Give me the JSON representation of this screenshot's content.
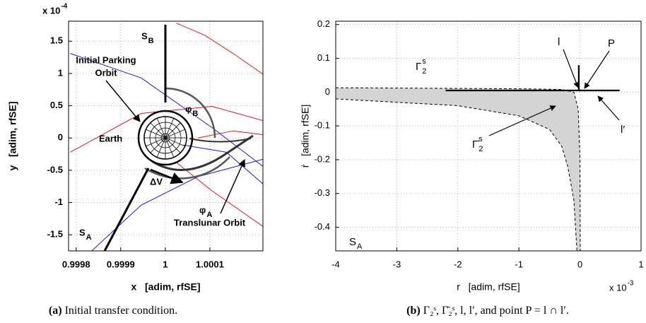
{
  "chart_data": [
    {
      "type": "line",
      "xlabel": "x   [adim, rfSE]",
      "ylabel": "y   [adim, rfSE]",
      "multiplier": {
        "text": "x 10",
        "sup": "-4"
      },
      "xlim": [
        0.999783,
        1.000219
      ],
      "ylim": [
        -1.75,
        1.81
      ],
      "xticks": [
        0.9998,
        0.9999,
        1,
        1.0001
      ],
      "yticks": [
        -1.5,
        -1,
        -0.5,
        0,
        0.5,
        1,
        1.5
      ],
      "grid": true,
      "series": [
        {
          "color": "#e8141c",
          "x": [
            1.000025,
            1.000089,
            1.000152,
            1.000219
          ],
          "y": [
            1.78,
            1.59,
            1.31,
            0.99
          ]
        },
        {
          "color": "#e8141c",
          "x": [
            0.999787,
            0.999946,
            1.000105,
            1.000219
          ],
          "y": [
            -0.22,
            0.38,
            0.49,
            0.27
          ]
        },
        {
          "color": "#e8141c",
          "x": [
            1.000025,
            1.000105,
            1.000219
          ],
          "y": [
            -0.38,
            -0.82,
            -1.37
          ]
        },
        {
          "color": "#e8141c",
          "x": [
            1.000073,
            1.000152,
            1.000219
          ],
          "y": [
            0,
            0.11,
            0.05
          ]
        },
        {
          "color": "#1a1ae0",
          "x": [
            0.999787,
            0.999946,
            1.000105,
            1.000219
          ],
          "y": [
            1.31,
            0.93,
            0.16,
            -0.44
          ]
        },
        {
          "color": "#1a1ae0",
          "x": [
            0.999835,
            0.999946,
            1.000073,
            1.000219
          ],
          "y": [
            -1.75,
            -1.04,
            -0.6,
            -0.33
          ]
        },
        {
          "color": "#1a1ae0",
          "x": [
            1.000041,
            1.000137,
            1.000219
          ],
          "y": [
            -0.11,
            -0.22,
            -0.71
          ]
        }
      ],
      "annotations": [
        {
          "text": "Initial Parking"
        },
        {
          "text": "Orbit"
        },
        {
          "text": "S",
          "sub": "B"
        },
        {
          "text": "φ",
          "sub": "B"
        },
        {
          "text": "Earth"
        },
        {
          "text": "ΔV"
        },
        {
          "text": "φ",
          "sub": "A"
        },
        {
          "text": "S",
          "sub": "A"
        },
        {
          "text": "Translunar Orbit"
        }
      ],
      "caption": {
        "label": "(a)",
        "text": " Initial transfer condition."
      }
    },
    {
      "type": "line",
      "xlabel": "r   [adim, rfSE]",
      "ylabel": "ṙ   [adim, rfSE]",
      "multiplier": {
        "text": "x 10",
        "sup": "-3"
      },
      "xlim": [
        -4,
        1
      ],
      "ylim": [
        -0.47,
        0.21
      ],
      "xticks": [
        -4,
        -3,
        -2,
        -1,
        0,
        1
      ],
      "yticks": [
        -0.4,
        -0.3,
        -0.2,
        -0.1,
        0,
        0.1,
        0.2
      ],
      "grid": true,
      "fill_color": "#d4d4d4",
      "series": [
        {
          "color": "#000000",
          "style": "dashed",
          "x": [
            -4,
            -2,
            -1,
            -0.3,
            -0.1,
            -0.03,
            0,
            0.005
          ],
          "y": [
            0.013,
            0.011,
            0.01,
            0.008,
            0,
            -0.05,
            -0.2,
            -0.47
          ]
        },
        {
          "color": "#000000",
          "style": "dashed",
          "x": [
            -4,
            -3,
            -2,
            -1,
            -0.5,
            -0.3,
            -0.2,
            -0.1,
            -0.05
          ],
          "y": [
            -0.02,
            -0.03,
            -0.04,
            -0.07,
            -0.11,
            -0.16,
            -0.22,
            -0.32,
            -0.47
          ]
        },
        {
          "color": "#000000",
          "x": [
            -2.2,
            0.65
          ],
          "y": [
            0.005,
            0.005
          ]
        },
        {
          "color": "#000000",
          "x": [
            -0.02,
            -0.02
          ],
          "y": [
            0.005,
            0.08
          ]
        }
      ],
      "annotations": [
        {
          "text": "l"
        },
        {
          "text": "P"
        },
        {
          "text": "Γ",
          "sub": "2",
          "sup": "s"
        },
        {
          "text": "Γ̄",
          "sub": "2",
          "sup": "s"
        },
        {
          "text": "l′"
        },
        {
          "text": "S",
          "sub": "A"
        }
      ],
      "caption": {
        "label": "(b)",
        "text": " Γ₂ˢ, Γ̄₂ˢ, l, l′, and point P = l ∩ l′."
      }
    }
  ]
}
